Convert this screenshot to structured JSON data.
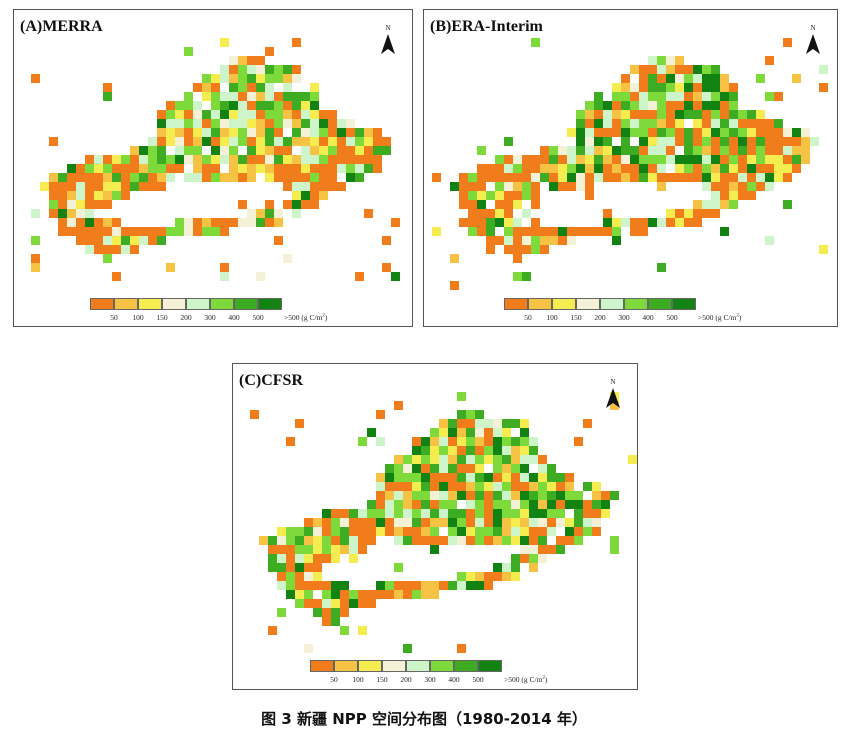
{
  "caption": "图 3 新疆 NPP 空间分布图（1980-2014 年）",
  "north_label": "N",
  "legend": {
    "colors": [
      "#f07c1c",
      "#f6c244",
      "#f5ec4f",
      "#f5f1d6",
      "#cef5ca",
      "#7dda3a",
      "#3eac22",
      "#128212"
    ],
    "labels": [
      "50",
      "100",
      "150",
      "200",
      "300",
      "400",
      "500"
    ],
    "unit_prefix": ">500 (g C/m",
    "unit_sup": "2",
    "unit_suffix": ")"
  },
  "panels": [
    {
      "id": "a",
      "title": "(A)MERRA",
      "palette_bias": [
        0.44,
        0.1,
        0.09,
        0.07,
        0.09,
        0.11,
        0.07,
        0.03
      ]
    },
    {
      "id": "b",
      "title": "(B)ERA-Interim",
      "palette_bias": [
        0.44,
        0.09,
        0.08,
        0.06,
        0.08,
        0.1,
        0.08,
        0.07
      ]
    },
    {
      "id": "c",
      "title": "(C)CFSR",
      "palette_bias": [
        0.4,
        0.1,
        0.09,
        0.06,
        0.08,
        0.13,
        0.08,
        0.06
      ]
    }
  ]
}
